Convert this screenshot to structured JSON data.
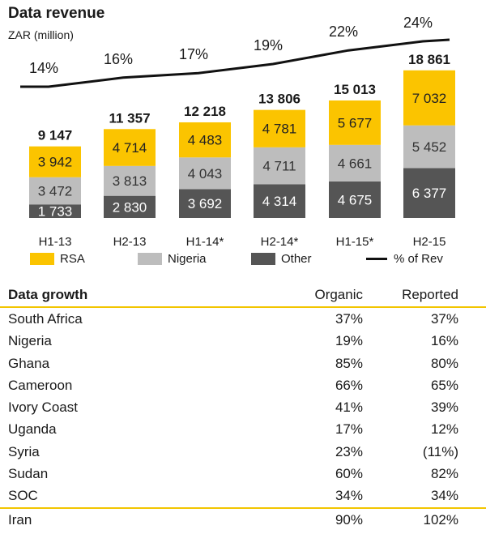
{
  "chart": {
    "title": "Data revenue",
    "subtitle": "ZAR (million)"
  },
  "colors": {
    "rsa": "#fbc400",
    "nigeria": "#bdbdbd",
    "other": "#555555",
    "line": "#111111",
    "rule": "#f2c500"
  },
  "chart_data": {
    "type": "bar",
    "stacked": true,
    "title": "Data revenue",
    "subtitle": "ZAR (million)",
    "categories": [
      "H1-13",
      "H2-13",
      "H1-14*",
      "H2-14*",
      "H1-15*",
      "H2-15"
    ],
    "series": [
      {
        "name": "Other",
        "values": [
          1733,
          2830,
          3692,
          4314,
          4675,
          6377
        ]
      },
      {
        "name": "Nigeria",
        "values": [
          3472,
          3813,
          4043,
          4711,
          4661,
          5452
        ]
      },
      {
        "name": "RSA",
        "values": [
          3942,
          4714,
          4483,
          4781,
          5677,
          7032
        ]
      }
    ],
    "value_labels": {
      "Other": [
        "1 733",
        "2 830",
        "3 692",
        "4 314",
        "4 675",
        "6 377"
      ],
      "Nigeria": [
        "3 472",
        "3 813",
        "4 043",
        "4 711",
        "4 661",
        "5 452"
      ],
      "RSA": [
        "3 942",
        "4 714",
        "4 483",
        "4 781",
        "5 677",
        "7 032"
      ]
    },
    "totals": [
      9147,
      11357,
      12218,
      13806,
      15013,
      18861
    ],
    "total_labels": [
      "9 147",
      "11 357",
      "12 218",
      "13 806",
      "15 013",
      "18 861"
    ],
    "line": {
      "name": "% of Rev",
      "values": [
        14,
        16,
        17,
        19,
        22,
        24
      ],
      "labels": [
        "14%",
        "16%",
        "17%",
        "19%",
        "22%",
        "24%"
      ]
    },
    "legend": [
      "RSA",
      "Nigeria",
      "Other",
      "% of Rev"
    ],
    "legend_position": "bottom"
  },
  "table": {
    "headers": [
      "Data growth",
      "Organic",
      "Reported"
    ],
    "rows": [
      [
        "South Africa",
        "37%",
        "37%"
      ],
      [
        "Nigeria",
        "19%",
        "16%"
      ],
      [
        "Ghana",
        "85%",
        "80%"
      ],
      [
        "Cameroon",
        "66%",
        "65%"
      ],
      [
        "Ivory Coast",
        "41%",
        "39%"
      ],
      [
        "Uganda",
        "17%",
        "12%"
      ],
      [
        "Syria",
        "23%",
        "(11%)"
      ],
      [
        "Sudan",
        "60%",
        "82%"
      ],
      [
        "SOC",
        "34%",
        "34%"
      ]
    ],
    "footer_row": [
      "Iran",
      "90%",
      "102%"
    ]
  }
}
